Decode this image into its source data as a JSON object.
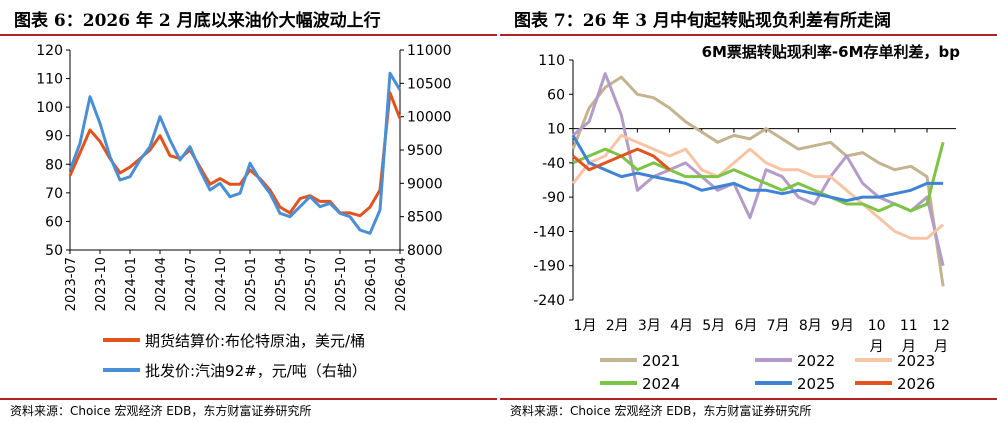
{
  "left_panel": {
    "title": "图表 6：2026 年 2 月底以来油价大幅波动上行",
    "source": "资料来源：Choice 宏观经济 EDB，东方财富证券研究所"
  },
  "right_panel": {
    "title": "图表 7：26 年 3 月中旬起转贴现负利差有所走阔",
    "source": "资料来源：Choice 宏观经济 EDB，东方财富证券研究所"
  },
  "chart_data": [
    {
      "type": "line",
      "title": "",
      "y_left": {
        "lim": [
          50,
          120
        ],
        "ticks": [
          50,
          60,
          70,
          80,
          90,
          100,
          110,
          120
        ]
      },
      "y_right": {
        "lim": [
          8000,
          11000
        ],
        "ticks": [
          8000,
          8500,
          9000,
          9500,
          10000,
          10500,
          11000
        ]
      },
      "x_ticks": [
        "2023-07",
        "2023-10",
        "2024-01",
        "2024-04",
        "2024-07",
        "2024-10",
        "2025-01",
        "2025-04",
        "2025-07",
        "2025-10",
        "2026-01",
        "2026-04"
      ],
      "legend_position": "bottom",
      "series": [
        {
          "name": "期货结算价:布伦特原油，美元/桶",
          "axis": "left",
          "color": "#e2531d",
          "x": [
            "2023-07",
            "2023-08",
            "2023-09",
            "2023-10",
            "2023-11",
            "2023-12",
            "2024-01",
            "2024-02",
            "2024-03",
            "2024-04",
            "2024-05",
            "2024-06",
            "2024-07",
            "2024-08",
            "2024-09",
            "2024-10",
            "2024-11",
            "2024-12",
            "2025-01",
            "2025-02",
            "2025-03",
            "2025-04",
            "2025-05",
            "2025-06",
            "2025-07",
            "2025-08",
            "2025-09",
            "2025-10",
            "2025-11",
            "2025-12",
            "2026-01",
            "2026-02",
            "2026-03",
            "2026-04"
          ],
          "y": [
            76,
            84,
            92,
            88,
            82,
            77,
            79,
            82,
            85,
            90,
            83,
            82,
            85,
            79,
            73,
            75,
            73,
            73,
            78,
            75,
            71,
            65,
            63,
            68,
            69,
            67,
            67,
            63,
            63,
            62,
            65,
            71,
            105,
            96
          ]
        },
        {
          "name": "批发价:汽油92#，元/吨（右轴）",
          "axis": "right",
          "color": "#4a8fd6",
          "x": [
            "2023-07",
            "2023-08",
            "2023-09",
            "2023-10",
            "2023-11",
            "2023-12",
            "2024-01",
            "2024-02",
            "2024-03",
            "2024-04",
            "2024-05",
            "2024-06",
            "2024-07",
            "2024-08",
            "2024-09",
            "2024-10",
            "2024-11",
            "2024-12",
            "2025-01",
            "2025-02",
            "2025-03",
            "2025-04",
            "2025-05",
            "2025-06",
            "2025-07",
            "2025-08",
            "2025-09",
            "2025-10",
            "2025-11",
            "2025-12",
            "2026-01",
            "2026-02",
            "2026-03",
            "2026-04"
          ],
          "y": [
            9200,
            9600,
            10300,
            9900,
            9400,
            9050,
            9100,
            9350,
            9550,
            10000,
            9650,
            9350,
            9550,
            9200,
            8900,
            9000,
            8800,
            8850,
            9300,
            9050,
            8850,
            8550,
            8500,
            8650,
            8800,
            8650,
            8700,
            8550,
            8500,
            8300,
            8250,
            8600,
            10650,
            10400
          ]
        }
      ]
    },
    {
      "type": "line",
      "title": "6M票据转贴现利率-6M存单利差，bp",
      "ylim": [
        -240,
        110
      ],
      "y_ticks": [
        110,
        60,
        10,
        -40,
        -90,
        -140,
        -190,
        -240
      ],
      "x_ticks": [
        "1月",
        "2月",
        "3月",
        "4月",
        "5月",
        "6月",
        "7月",
        "8月",
        "9月",
        "10月",
        "11月",
        "12月"
      ],
      "legend_position": "bottom",
      "series": [
        {
          "name": "2021",
          "color": "#c4b38f",
          "x": [
            1,
            1.5,
            2,
            2.5,
            3,
            3.5,
            4,
            4.5,
            5,
            5.5,
            6,
            6.5,
            7,
            7.5,
            8,
            8.5,
            9,
            9.5,
            10,
            10.5,
            11,
            11.5,
            12,
            12.5
          ],
          "y": [
            -20,
            40,
            70,
            85,
            60,
            55,
            40,
            20,
            5,
            -10,
            0,
            -5,
            10,
            -5,
            -20,
            -15,
            -10,
            -30,
            -25,
            -40,
            -50,
            -45,
            -60,
            -220
          ]
        },
        {
          "name": "2022",
          "color": "#b39cc7",
          "x": [
            1,
            1.5,
            2,
            2.5,
            3,
            3.5,
            4,
            4.5,
            5,
            5.5,
            6,
            6.5,
            7,
            7.5,
            8,
            8.5,
            9,
            9.5,
            10,
            10.5,
            11,
            11.5,
            12,
            12.5
          ],
          "y": [
            0,
            20,
            90,
            30,
            -80,
            -60,
            -50,
            -40,
            -60,
            -80,
            -70,
            -120,
            -50,
            -60,
            -90,
            -100,
            -60,
            -30,
            -70,
            -90,
            -100,
            -110,
            -90,
            -190
          ]
        },
        {
          "name": "2023",
          "color": "#f7c4a5",
          "x": [
            1,
            1.5,
            2,
            2.5,
            3,
            3.5,
            4,
            4.5,
            5,
            5.5,
            6,
            6.5,
            7,
            7.5,
            8,
            8.5,
            9,
            9.5,
            10,
            10.5,
            11,
            11.5,
            12,
            12.5
          ],
          "y": [
            -70,
            -40,
            -30,
            0,
            -10,
            -20,
            -30,
            -20,
            -50,
            -60,
            -40,
            -20,
            -40,
            -50,
            -50,
            -60,
            -60,
            -80,
            -100,
            -120,
            -140,
            -150,
            -150,
            -130
          ]
        },
        {
          "name": "2024",
          "color": "#7cc443",
          "x": [
            1,
            1.5,
            2,
            2.5,
            3,
            3.5,
            4,
            4.5,
            5,
            5.5,
            6,
            6.5,
            7,
            7.5,
            8,
            8.5,
            9,
            9.5,
            10,
            10.5,
            11,
            11.5,
            12,
            12.5
          ],
          "y": [
            -40,
            -30,
            -20,
            -30,
            -50,
            -40,
            -50,
            -60,
            -60,
            -60,
            -50,
            -60,
            -70,
            -80,
            -70,
            -80,
            -90,
            -100,
            -100,
            -110,
            -100,
            -110,
            -100,
            -10
          ]
        },
        {
          "name": "2025",
          "color": "#3f83d4",
          "x": [
            1,
            1.5,
            2,
            2.5,
            3,
            3.5,
            4,
            4.5,
            5,
            5.5,
            6,
            6.5,
            7,
            7.5,
            8,
            8.5,
            9,
            9.5,
            10,
            10.5,
            11,
            11.5,
            12,
            12.5
          ],
          "y": [
            0,
            -40,
            -50,
            -60,
            -55,
            -60,
            -65,
            -70,
            -80,
            -75,
            -70,
            -80,
            -80,
            -85,
            -80,
            -85,
            -90,
            -95,
            -90,
            -90,
            -85,
            -80,
            -70,
            -70
          ]
        },
        {
          "name": "2026",
          "color": "#e2531d",
          "x": [
            1,
            1.5,
            2,
            2.5,
            3,
            3.5,
            4
          ],
          "y": [
            -30,
            -50,
            -40,
            -30,
            -20,
            -30,
            -50
          ]
        }
      ]
    }
  ]
}
